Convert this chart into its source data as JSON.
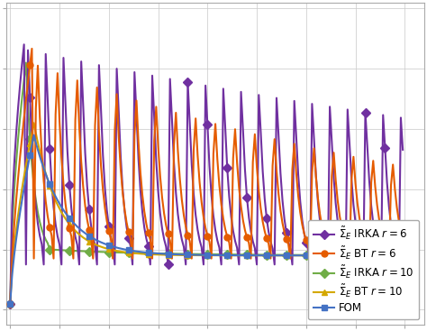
{
  "background_color": "#ffffff",
  "grid_color": "#cccccc",
  "series": {
    "FOM": {
      "color": "#4472c4",
      "marker": "s",
      "linewidth": 1.5,
      "markersize": 5,
      "zorder": 5,
      "label": "FOM"
    },
    "BT6": {
      "color": "#e55c00",
      "marker": "o",
      "linewidth": 1.5,
      "markersize": 5,
      "zorder": 4,
      "label": "$\\tilde{\\Sigma}_E$ BT $r = 6$"
    },
    "BT10": {
      "color": "#d4a800",
      "marker": "^",
      "linewidth": 1.5,
      "markersize": 5,
      "zorder": 3,
      "label": "$\\tilde{\\Sigma}_E$ BT $r = 10$"
    },
    "IRKA6": {
      "color": "#7030a0",
      "marker": "D",
      "linewidth": 1.5,
      "markersize": 5,
      "zorder": 2,
      "label": "$\\tilde{\\Sigma}_E$ IRKA $r = 6$"
    },
    "IRKA10": {
      "color": "#70ad47",
      "marker": "D",
      "linewidth": 1.5,
      "markersize": 5,
      "zorder": 1,
      "label": "$\\tilde{\\Sigma}_E$ IRKA $r = 10$"
    }
  },
  "legend_fontsize": 8.5,
  "xlim": [
    -2,
    210
  ],
  "ylim": [
    -0.05,
    1.02
  ],
  "n_points": 200,
  "marker_every": 10
}
